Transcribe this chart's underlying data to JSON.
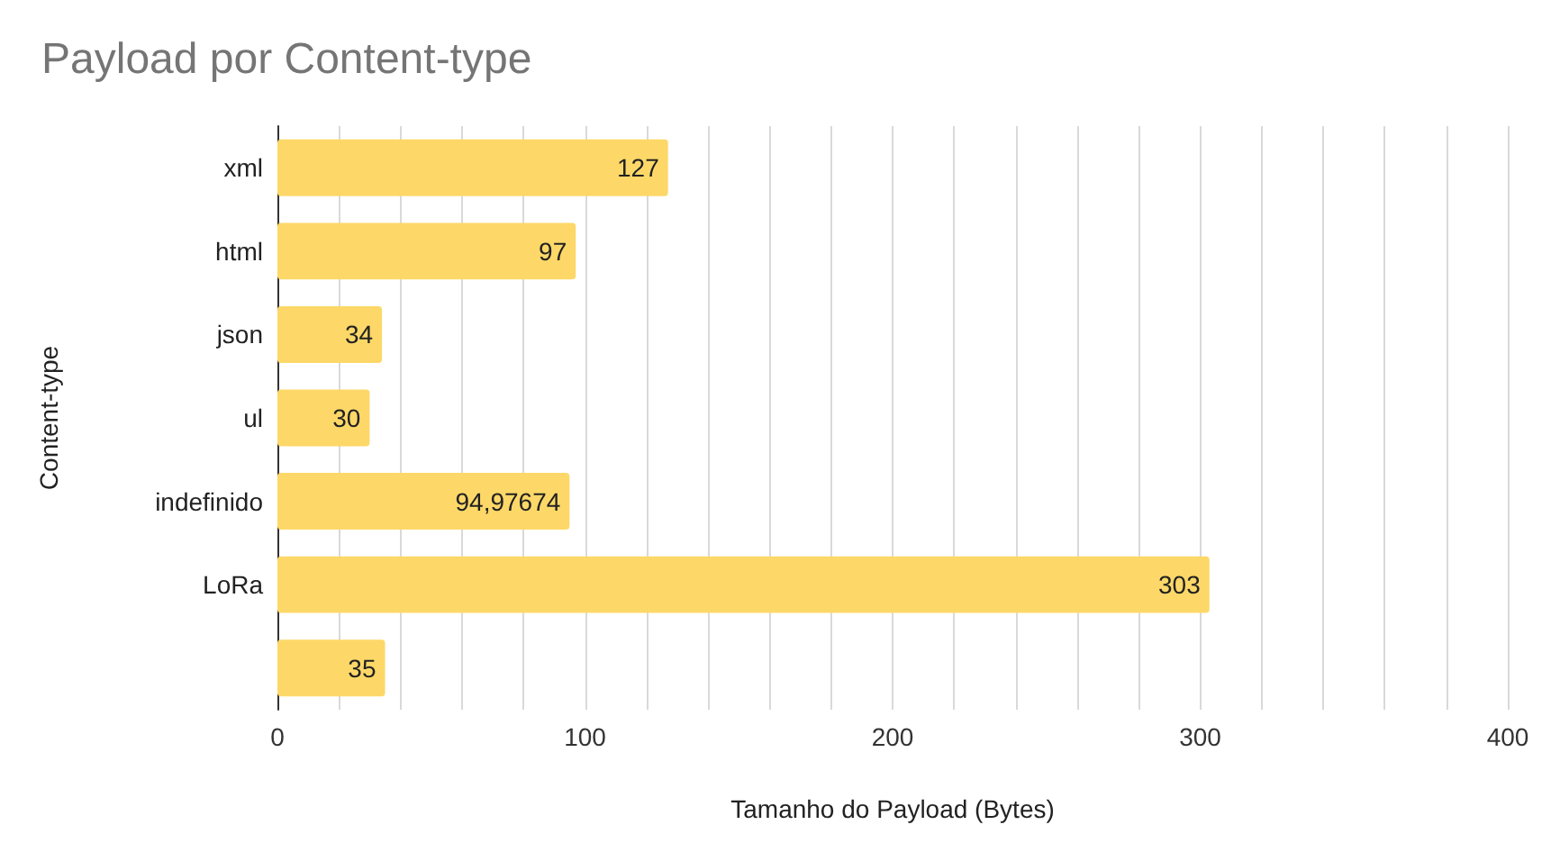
{
  "chart_data": {
    "type": "bar",
    "orientation": "horizontal",
    "title": "Payload por Content-type",
    "xlabel": "Tamanho do Payload (Bytes)",
    "ylabel": "Content-type",
    "categories": [
      "xml",
      "html",
      "json",
      "ul",
      "indefinido",
      "LoRa",
      null
    ],
    "values": [
      127,
      97,
      34,
      30,
      94.97674,
      303,
      35
    ],
    "value_labels": [
      "127",
      "97",
      "34",
      "30",
      "94,97674",
      "303",
      "35"
    ],
    "color": "#fdd868",
    "xlim": [
      0,
      400
    ],
    "xticks": [
      0,
      {
        "value": 20,
        "label": null
      },
      {
        "value": 40,
        "label": null
      },
      {
        "value": 60,
        "label": null
      },
      {
        "value": 80,
        "label": null
      },
      100,
      {
        "value": 120,
        "label": null
      },
      {
        "value": 140,
        "label": null
      },
      {
        "value": 160,
        "label": null
      },
      {
        "value": 180,
        "label": null
      },
      200,
      {
        "value": 220,
        "label": null
      },
      {
        "value": 240,
        "label": null
      },
      {
        "value": 260,
        "label": null
      },
      {
        "value": 280,
        "label": null
      },
      300,
      {
        "value": 320,
        "label": null
      },
      {
        "value": 340,
        "label": null
      },
      {
        "value": 360,
        "label": null
      },
      {
        "value": 380,
        "label": null
      },
      400
    ],
    "grid": "x"
  }
}
